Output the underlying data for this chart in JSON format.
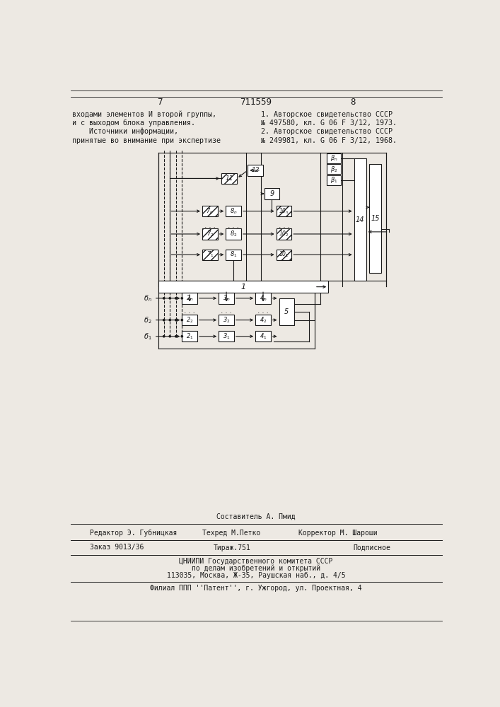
{
  "bg_color": "#ede9e3",
  "line_color": "#1a1a1a",
  "page_number_left": "7",
  "page_number_center": "711559",
  "page_number_right": "8",
  "text_left_col": [
    "входами элементов И второй группы,",
    "и с выходом блока управления.",
    "    Источники информации,",
    "принятые во внимание при экспертизе"
  ],
  "text_right_col": [
    "1. Авторское свидетельство СССР",
    "№ 497580, кл. G 06 F 3/12, 1973.",
    "2. Авторское свидетельство СССР",
    "№ 249981, кл. G 06 F 3/12, 1968."
  ]
}
